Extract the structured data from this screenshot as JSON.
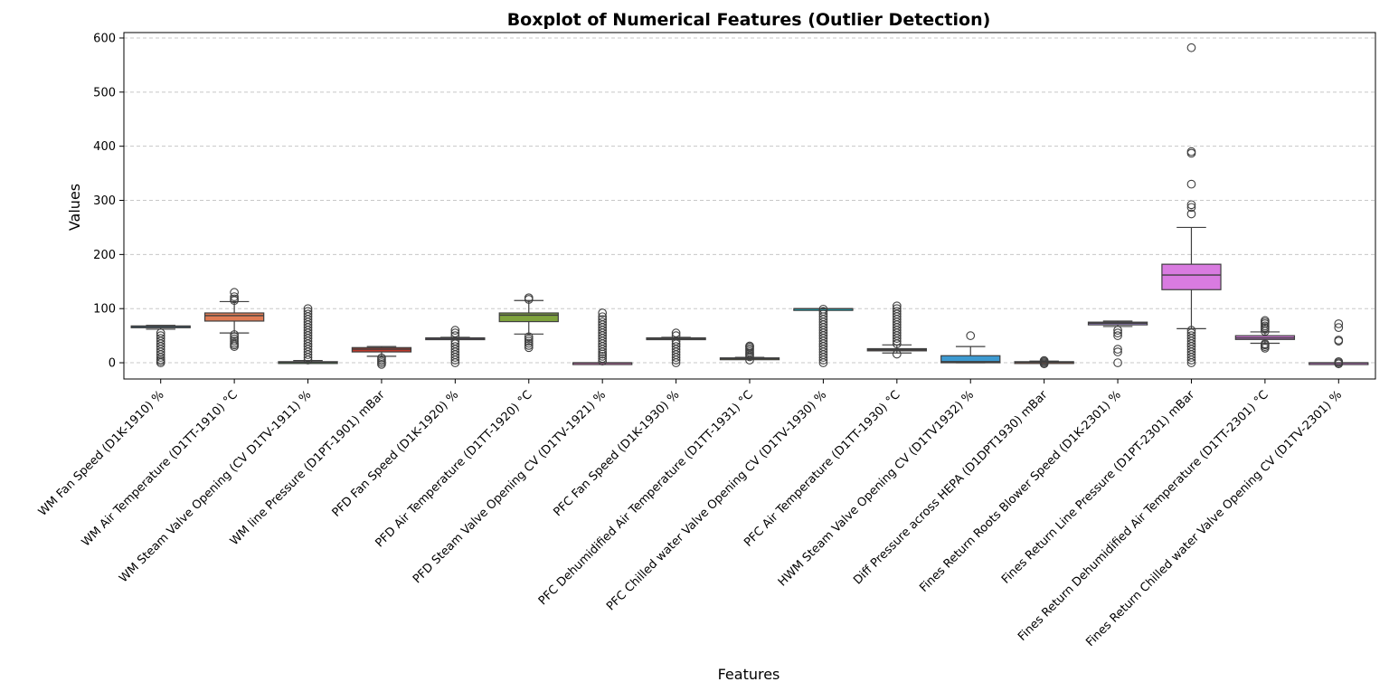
{
  "chart_data": {
    "type": "box",
    "title": "Boxplot of Numerical Features (Outlier Detection)",
    "xlabel": "Features",
    "ylabel": "Values",
    "ylim": [
      -30,
      610
    ],
    "yticks": [
      0,
      100,
      200,
      300,
      400,
      500,
      600
    ],
    "grid": "y-dashed",
    "series": [
      {
        "label": "WM Fan Speed (D1K-1910) %",
        "color": "#3d9ad1",
        "q1": 65,
        "median": 67,
        "q3": 68,
        "whisker_low": 62,
        "whisker_high": 69,
        "outliers": [
          0,
          3,
          6,
          10,
          15,
          20,
          25,
          30,
          35,
          40,
          45,
          50,
          55
        ]
      },
      {
        "label": "WM Air Temperature (D1TT-1910) °C",
        "color": "#e07b54",
        "q1": 77,
        "median": 87,
        "q3": 92,
        "whisker_low": 55,
        "whisker_high": 113,
        "outliers": [
          30,
          33,
          36,
          40,
          44,
          48,
          52,
          115,
          118,
          122,
          130
        ]
      },
      {
        "label": "WM Steam Valve Opening (CV D1TV-1911) %",
        "color": "#3a923a",
        "q1": 0,
        "median": 1,
        "q3": 2,
        "whisker_low": 0,
        "whisker_high": 4,
        "outliers": [
          5,
          10,
          15,
          20,
          25,
          30,
          35,
          40,
          45,
          50,
          55,
          60,
          65,
          70,
          75,
          80,
          85,
          90,
          95,
          100
        ]
      },
      {
        "label": "WM line Pressure (D1PT-1901) mBar",
        "color": "#c0392b",
        "q1": 20,
        "median": 25,
        "q3": 28,
        "whisker_low": 12,
        "whisker_high": 30,
        "outliers": [
          -3,
          0,
          3,
          6,
          9
        ]
      },
      {
        "label": "PFD Fan Speed (D1K-1920) %",
        "color": "#9b59b6",
        "q1": 44,
        "median": 45,
        "q3": 46,
        "whisker_low": 43,
        "whisker_high": 47,
        "outliers": [
          0,
          5,
          10,
          15,
          20,
          25,
          30,
          35,
          40,
          50,
          55,
          60
        ]
      },
      {
        "label": "PFD Air Temperature (D1TT-1920)  °C",
        "color": "#7fa33d",
        "q1": 76,
        "median": 88,
        "q3": 92,
        "whisker_low": 53,
        "whisker_high": 115,
        "outliers": [
          28,
          32,
          36,
          40,
          44,
          48,
          117,
          120
        ]
      },
      {
        "label": "PFD Steam Valve Opening CV (D1TV-1921) %",
        "color": "#e377c2",
        "q1": 0,
        "median": 0,
        "q3": 0,
        "whisker_low": 0,
        "whisker_high": 0,
        "outliers": [
          3,
          8,
          12,
          16,
          20,
          25,
          30,
          35,
          40,
          45,
          50,
          55,
          60,
          65,
          70,
          75,
          80,
          85,
          92
        ]
      },
      {
        "label": "PFC Fan  Speed (D1K-1930) %",
        "color": "#7f7f7f",
        "q1": 44,
        "median": 45,
        "q3": 46,
        "whisker_low": 43,
        "whisker_high": 47,
        "outliers": [
          0,
          5,
          10,
          15,
          20,
          25,
          30,
          35,
          40,
          50,
          55
        ]
      },
      {
        "label": "PFC Dehumidified Air Temperature (D1TT-1931)  °C",
        "color": "#bcbd22",
        "q1": 7,
        "median": 8,
        "q3": 9,
        "whisker_low": 6,
        "whisker_high": 10,
        "outliers": [
          5,
          11,
          14,
          17,
          20,
          23,
          26,
          29,
          31
        ]
      },
      {
        "label": "PFC Chilled water Valve Opening CV (D1TV-1930) %",
        "color": "#17becf",
        "q1": 100,
        "median": 100,
        "q3": 100,
        "whisker_low": 100,
        "whisker_high": 100,
        "outliers": [
          0,
          5,
          10,
          15,
          20,
          25,
          30,
          35,
          40,
          45,
          50,
          55,
          60,
          65,
          70,
          75,
          80,
          85,
          90,
          95,
          99
        ]
      },
      {
        "label": "PFC Air Temperature (D1TT-1930)  °C",
        "color": "#8c564b",
        "q1": 22,
        "median": 24,
        "q3": 26,
        "whisker_low": 18,
        "whisker_high": 33,
        "outliers": [
          16,
          35,
          40,
          45,
          50,
          55,
          60,
          65,
          70,
          75,
          80,
          85,
          90,
          95,
          100,
          105
        ]
      },
      {
        "label": "HWM Steam Valve Opening CV (D1TV1932) %",
        "color": "#3d9ad1",
        "q1": 0,
        "median": 2,
        "q3": 13,
        "whisker_low": 0,
        "whisker_high": 30,
        "outliers": [
          50
        ]
      },
      {
        "label": "Diff Pressure across HEPA (D1DPT1930) mBar",
        "color": "#e07b54",
        "q1": 0,
        "median": 1,
        "q3": 2,
        "whisker_low": 0,
        "whisker_high": 3,
        "outliers": [
          -2,
          0,
          2,
          4
        ]
      },
      {
        "label": "Fines Return Roots Blower Speed (D1K-2301) %",
        "color": "#a78bd9",
        "q1": 70,
        "median": 73,
        "q3": 75,
        "whisker_low": 67,
        "whisker_high": 77,
        "outliers": [
          0,
          20,
          25,
          50,
          55,
          60
        ]
      },
      {
        "label": "Fines Return Line Pressure (D1PT-2301) mBar",
        "color": "#d97be0",
        "q1": 135,
        "median": 162,
        "q3": 182,
        "whisker_low": 63,
        "whisker_high": 250,
        "outliers": [
          0,
          5,
          10,
          15,
          20,
          25,
          30,
          35,
          40,
          45,
          50,
          55,
          60,
          275,
          287,
          292,
          330,
          387,
          390,
          582
        ]
      },
      {
        "label": "Fines Return Dehumidified Air Temperature (D1TT-2301)  °C",
        "color": "#d97be0",
        "q1": 43,
        "median": 46,
        "q3": 50,
        "whisker_low": 36,
        "whisker_high": 57,
        "outliers": [
          27,
          30,
          33,
          35,
          58,
          62,
          65,
          68,
          72,
          75,
          78
        ]
      },
      {
        "label": "Fines Return Chilled water Valve Opening CV (D1TV-2301) %",
        "color": "#d97be0",
        "q1": 0,
        "median": 0,
        "q3": 0,
        "whisker_low": 0,
        "whisker_high": 0,
        "outliers": [
          -2,
          0,
          2,
          40,
          42,
          65,
          72
        ]
      }
    ]
  }
}
